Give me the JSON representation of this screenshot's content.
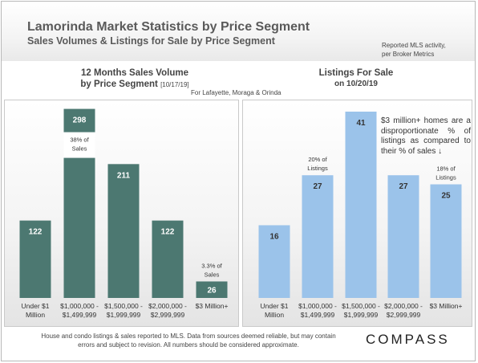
{
  "header": {
    "title": "Lamorinda Market Statistics by Price Segment",
    "subtitle": "Sales Volumes & Listings for Sale by Price Segment",
    "note_line1": "Reported MLS activity,",
    "note_line2": "per Broker Metrics"
  },
  "left_chart": {
    "title_line1": "12 Months Sales Volume",
    "title_line2": "by Price Segment",
    "title_date": "[10/17/19]"
  },
  "right_chart": {
    "title_line1": "Listings For Sale",
    "title_line2": "on 10/20/19",
    "annotation": "$3 million+ homes are a disproportionate % of listings as compared to their % of sales ↓"
  },
  "area_note": "For Lafayette, Moraga & Orinda",
  "footer": {
    "disclaimer": "House and condo listings & sales reported to MLS. Data from sources deemed reliable, but may contain errors and subject to revision. All numbers should be considered approximate.",
    "brand": "COMPASS"
  },
  "chart_data": [
    {
      "type": "bar",
      "categories": [
        [
          "Under $1",
          "Million"
        ],
        [
          "$1,000,000 -",
          "$1,499,999"
        ],
        [
          "$1,500,000 -",
          "$1,999,999"
        ],
        [
          "$2,000,000 -",
          "$2,999,999"
        ],
        [
          "$3 Million+"
        ]
      ],
      "values": [
        122,
        298,
        211,
        122,
        26
      ],
      "data_labels": [
        "122",
        "298",
        "211",
        "122",
        "26"
      ],
      "annotations": [
        {
          "category_index": 1,
          "lines": [
            "38% of",
            "Sales"
          ],
          "placement": "inside-bar-top"
        },
        {
          "category_index": 4,
          "lines": [
            "3.3% of",
            "Sales"
          ],
          "placement": "above-bar"
        }
      ],
      "color": "#4c7871",
      "ylim": [
        0,
        300
      ]
    },
    {
      "type": "bar",
      "categories": [
        [
          "Under $1",
          "Million"
        ],
        [
          "$1,000,000 -",
          "$1,499,999"
        ],
        [
          "$1,500,000 -",
          "$1,999,999"
        ],
        [
          "$2,000,000 -",
          "$2,999,999"
        ],
        [
          "$3 Million+"
        ]
      ],
      "values": [
        16,
        27,
        41,
        27,
        25
      ],
      "data_labels": [
        "16",
        "27",
        "41",
        "27",
        "25"
      ],
      "annotations": [
        {
          "category_index": 1,
          "lines": [
            "20% of",
            "Listings"
          ],
          "placement": "above-bar"
        },
        {
          "category_index": 4,
          "lines": [
            "18% of",
            "Listings"
          ],
          "placement": "above-bar"
        }
      ],
      "color": "#9bc3ea",
      "ylim": [
        0,
        41
      ]
    }
  ]
}
